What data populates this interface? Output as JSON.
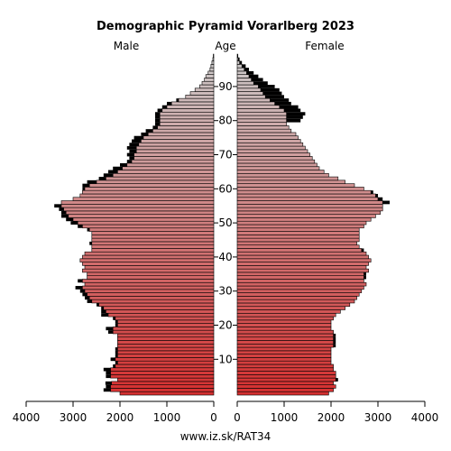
{
  "chart_data": {
    "type": "bar",
    "title": "Demographic Pyramid Vorarlberg 2023",
    "left_label": "Male",
    "center_label": "Age",
    "right_label": "Female",
    "footer": "www.iz.sk/RAT34",
    "x_range": [
      0,
      4000
    ],
    "x_ticks": [
      {
        "value": 4000,
        "label": "4000"
      },
      {
        "value": 3000,
        "label": "3000"
      },
      {
        "value": 2000,
        "label": "2000"
      },
      {
        "value": 1000,
        "label": "1000"
      },
      {
        "value": 0,
        "label": "0"
      }
    ],
    "x_ticks_right": [
      {
        "value": 0,
        "label": "0"
      },
      {
        "value": 1000,
        "label": "1000"
      },
      {
        "value": 2000,
        "label": "2000"
      },
      {
        "value": 3000,
        "label": "3000"
      },
      {
        "value": 4000,
        "label": "4000"
      }
    ],
    "age_ticks": [
      {
        "value": 10,
        "label": "10"
      },
      {
        "value": 20,
        "label": "20"
      },
      {
        "value": 30,
        "label": "30"
      },
      {
        "value": 40,
        "label": "40"
      },
      {
        "value": 50,
        "label": "50"
      },
      {
        "value": 60,
        "label": "60"
      },
      {
        "value": 70,
        "label": "70"
      },
      {
        "value": 80,
        "label": "80"
      },
      {
        "value": 90,
        "label": "90"
      }
    ],
    "ages": [
      0,
      1,
      2,
      3,
      4,
      5,
      6,
      7,
      8,
      9,
      10,
      11,
      12,
      13,
      14,
      15,
      16,
      17,
      18,
      19,
      20,
      21,
      22,
      23,
      24,
      25,
      26,
      27,
      28,
      29,
      30,
      31,
      32,
      33,
      34,
      35,
      36,
      37,
      38,
      39,
      40,
      41,
      42,
      43,
      44,
      45,
      46,
      47,
      48,
      49,
      50,
      51,
      52,
      53,
      54,
      55,
      56,
      57,
      58,
      59,
      60,
      61,
      62,
      63,
      64,
      65,
      66,
      67,
      68,
      69,
      70,
      71,
      72,
      73,
      74,
      75,
      76,
      77,
      78,
      79,
      80,
      81,
      82,
      83,
      84,
      85,
      86,
      87,
      88,
      89,
      90,
      91,
      92,
      93,
      94,
      95,
      96,
      97,
      98,
      99
    ],
    "series": [
      {
        "name": "Male",
        "values": [
          2000,
          2200,
          2200,
          2180,
          2050,
          2200,
          2200,
          2200,
          2100,
          2050,
          2100,
          2050,
          2050,
          2050,
          2050,
          2050,
          2050,
          2050,
          2150,
          2150,
          2050,
          2050,
          2100,
          2250,
          2300,
          2350,
          2450,
          2600,
          2650,
          2700,
          2750,
          2800,
          2750,
          2800,
          2700,
          2700,
          2800,
          2750,
          2800,
          2850,
          2800,
          2750,
          2600,
          2600,
          2600,
          2600,
          2600,
          2600,
          2650,
          2800,
          2900,
          3000,
          3100,
          3150,
          3200,
          3250,
          3250,
          3000,
          2850,
          2800,
          2750,
          2650,
          2500,
          2300,
          2150,
          2050,
          1950,
          1850,
          1750,
          1700,
          1700,
          1650,
          1650,
          1600,
          1550,
          1500,
          1400,
          1300,
          1200,
          1150,
          1150,
          1150,
          1150,
          1100,
          1000,
          900,
          750,
          600,
          500,
          400,
          300,
          250,
          200,
          170,
          120,
          80,
          60,
          40,
          20,
          10
        ]
      },
      {
        "name": "Female",
        "values": [
          1950,
          2050,
          2100,
          2050,
          2100,
          2100,
          2100,
          2050,
          2050,
          2000,
          2000,
          2000,
          2000,
          2000,
          2050,
          2050,
          2050,
          2050,
          2050,
          2000,
          2000,
          2000,
          2050,
          2100,
          2200,
          2300,
          2400,
          2500,
          2550,
          2600,
          2650,
          2700,
          2750,
          2700,
          2700,
          2700,
          2800,
          2750,
          2800,
          2850,
          2800,
          2750,
          2650,
          2600,
          2550,
          2600,
          2600,
          2600,
          2600,
          2700,
          2750,
          2850,
          2950,
          3050,
          3100,
          3100,
          3100,
          3000,
          2950,
          2850,
          2700,
          2500,
          2300,
          2150,
          1950,
          1850,
          1750,
          1700,
          1650,
          1600,
          1550,
          1500,
          1450,
          1400,
          1350,
          1300,
          1250,
          1150,
          1100,
          1050,
          1050,
          1050,
          1050,
          1000,
          900,
          800,
          700,
          600,
          550,
          500,
          450,
          350,
          300,
          250,
          200,
          150,
          100,
          50,
          20,
          10
        ]
      },
      {
        "name": "Male excess",
        "values": [
          0,
          150,
          100,
          130,
          0,
          100,
          100,
          150,
          50,
          50,
          100,
          50,
          50,
          50,
          0,
          0,
          0,
          0,
          100,
          150,
          50,
          50,
          50,
          150,
          100,
          50,
          50,
          100,
          100,
          100,
          100,
          150,
          0,
          100,
          0,
          0,
          0,
          0,
          0,
          0,
          0,
          0,
          0,
          0,
          50,
          0,
          0,
          0,
          50,
          100,
          150,
          150,
          150,
          100,
          100,
          150,
          0,
          0,
          0,
          0,
          50,
          150,
          200,
          150,
          200,
          200,
          200,
          150,
          100,
          100,
          150,
          150,
          200,
          200,
          200,
          200,
          150,
          150,
          100,
          100,
          100,
          100,
          100,
          100,
          100,
          100,
          50,
          0,
          0,
          0,
          0,
          0,
          0,
          0,
          0,
          0,
          0,
          0,
          0,
          0
        ]
      },
      {
        "name": "Female excess",
        "values": [
          0,
          0,
          0,
          0,
          50,
          0,
          0,
          0,
          0,
          0,
          0,
          0,
          0,
          0,
          50,
          50,
          50,
          50,
          0,
          0,
          0,
          0,
          0,
          0,
          0,
          0,
          0,
          0,
          0,
          0,
          0,
          0,
          0,
          0,
          50,
          50,
          0,
          0,
          0,
          0,
          0,
          0,
          50,
          0,
          0,
          0,
          0,
          0,
          0,
          0,
          0,
          0,
          0,
          0,
          0,
          0,
          150,
          100,
          50,
          50,
          0,
          0,
          0,
          0,
          0,
          0,
          0,
          0,
          0,
          0,
          0,
          0,
          0,
          0,
          0,
          0,
          0,
          0,
          0,
          0,
          300,
          350,
          400,
          350,
          400,
          350,
          400,
          400,
          400,
          400,
          350,
          300,
          250,
          200,
          150,
          100,
          80,
          50,
          30,
          10
        ]
      }
    ]
  }
}
